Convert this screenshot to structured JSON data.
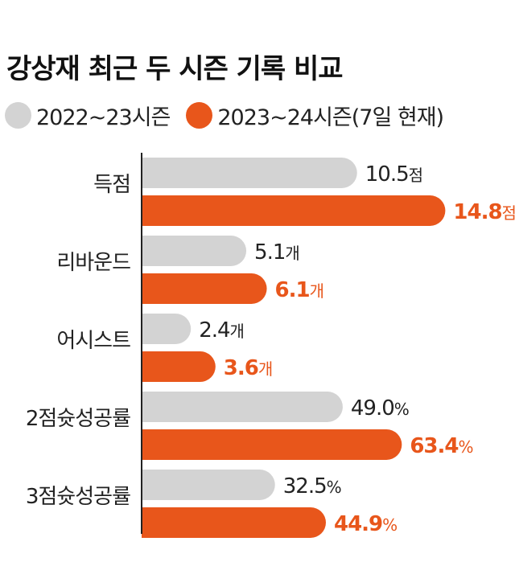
{
  "colors": {
    "prev": "#d3d3d3",
    "curr": "#e8561b",
    "axis": "#222222",
    "text": "#222222"
  },
  "chart_data": {
    "type": "bar",
    "orientation": "horizontal",
    "title": "강상재 최근 두 시즌 기록 비교",
    "categories": [
      "득점",
      "리바운드",
      "어시스트",
      "2점슛성공률",
      "3점슛성공률"
    ],
    "series": [
      {
        "name": "2022~23시즌",
        "values": [
          10.5,
          5.1,
          2.4,
          49.0,
          32.5
        ],
        "labels": [
          "10.5",
          "5.1",
          "2.4",
          "49.0",
          "32.5"
        ]
      },
      {
        "name": "2023~24시즌(7일 현재)",
        "values": [
          14.8,
          6.1,
          3.6,
          63.4,
          44.9
        ],
        "labels": [
          "14.8",
          "6.1",
          "3.6",
          "63.4",
          "44.9"
        ]
      }
    ],
    "units": [
      "점",
      "개",
      "개",
      "%",
      "%"
    ],
    "scale_max": [
      20,
      20,
      20,
      100,
      100
    ]
  }
}
